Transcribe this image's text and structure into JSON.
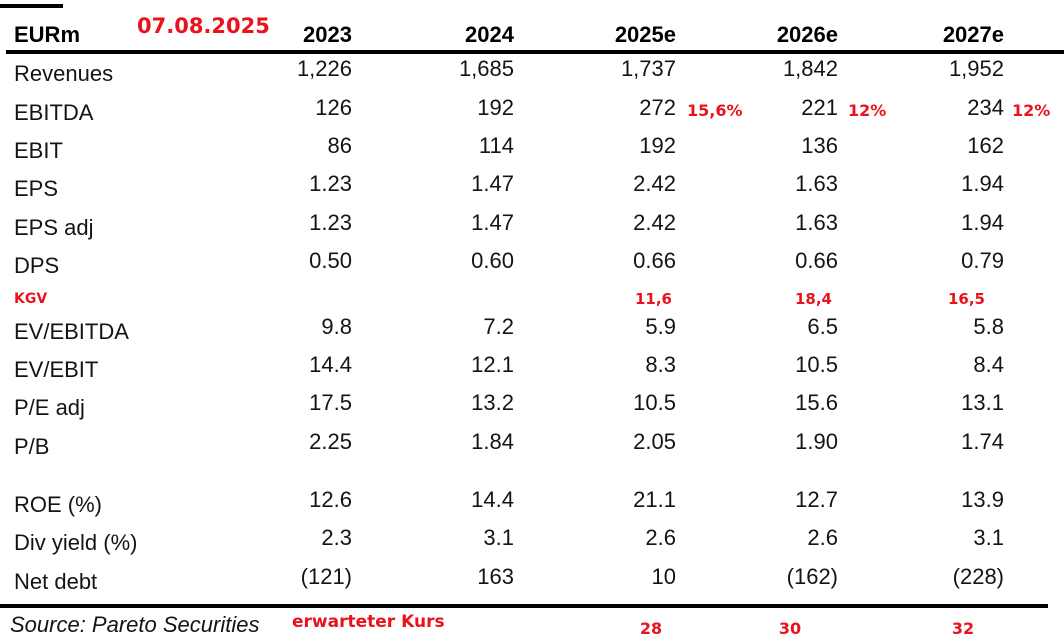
{
  "table": {
    "unit": "EURm",
    "columns": [
      "2023",
      "2024",
      "2025e",
      "2026e",
      "2027e"
    ],
    "rows": [
      {
        "label": "Revenues",
        "values": [
          "1,226",
          "1,685",
          "1,737",
          "1,842",
          "1,952"
        ]
      },
      {
        "label": "EBITDA",
        "values": [
          "126",
          "192",
          "272",
          "221",
          "234"
        ],
        "growth_annotations": [
          "",
          "",
          "15,6%",
          "12%",
          "12%"
        ]
      },
      {
        "label": "EBIT",
        "values": [
          "86",
          "114",
          "192",
          "136",
          "162"
        ]
      },
      {
        "label": "EPS",
        "values": [
          "1.23",
          "1.47",
          "2.42",
          "1.63",
          "1.94"
        ]
      },
      {
        "label": "EPS adj",
        "values": [
          "1.23",
          "1.47",
          "2.42",
          "1.63",
          "1.94"
        ]
      },
      {
        "label": "DPS",
        "values": [
          "0.50",
          "0.60",
          "0.66",
          "0.66",
          "0.79"
        ]
      },
      {
        "label": "EV/EBITDA",
        "values": [
          "9.8",
          "7.2",
          "5.9",
          "6.5",
          "5.8"
        ]
      },
      {
        "label": "EV/EBIT",
        "values": [
          "14.4",
          "12.1",
          "8.3",
          "10.5",
          "8.4"
        ]
      },
      {
        "label": "P/E adj",
        "values": [
          "17.5",
          "13.2",
          "10.5",
          "15.6",
          "13.1"
        ]
      },
      {
        "label": "P/B",
        "values": [
          "2.25",
          "1.84",
          "2.05",
          "1.90",
          "1.74"
        ]
      },
      {
        "label": "ROE (%)",
        "values": [
          "12.6",
          "14.4",
          "21.1",
          "12.7",
          "13.9"
        ]
      },
      {
        "label": "Div yield (%)",
        "values": [
          "2.3",
          "3.1",
          "2.6",
          "2.6",
          "3.1"
        ]
      },
      {
        "label": "Net debt",
        "values": [
          "(121)",
          "163",
          "10",
          "(162)",
          "(228)"
        ]
      }
    ]
  },
  "annotations": {
    "date": "07.08.2025",
    "kgv": {
      "label": "KGV",
      "values": [
        "11,6",
        "18,4",
        "16,5"
      ]
    }
  },
  "footer": {
    "source": "Source: Pareto Securities",
    "expected_price_label": "erwarteter Kurs",
    "expected_prices": [
      "28",
      "30",
      "32"
    ]
  },
  "colors": {
    "annotation_red": "#e8131c",
    "text": "#141414",
    "line": "#000000"
  }
}
